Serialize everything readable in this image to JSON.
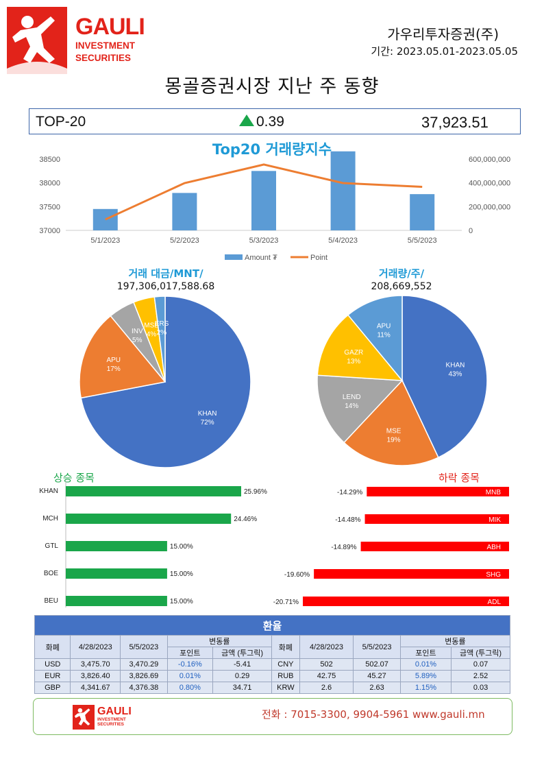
{
  "header": {
    "logo_main": "GAULI",
    "logo_sub1": "INVESTMENT",
    "logo_sub2": "SECURITIES",
    "company": "가우리투자증권(주)",
    "period": "기간: 2023.05.01-2023.05.05",
    "title": "몽골증권시장 지난 주 동향"
  },
  "top20": {
    "label": "TOP-20",
    "change": "0.39",
    "value": "37,923.51",
    "direction": "up"
  },
  "colors": {
    "brand_red": "#e2231a",
    "blue": "#4472c4",
    "orange": "#ed7d31",
    "gray": "#a5a5a5",
    "yellow": "#ffc000",
    "light_blue": "#5b9bd5",
    "green": "#1aa64a",
    "loss_red": "#ff0000"
  },
  "chart_data": [
    {
      "type": "bar",
      "title": "Top20 거래량지수",
      "categories": [
        "5/1/2023",
        "5/2/2023",
        "5/3/2023",
        "5/4/2023",
        "5/5/2023"
      ],
      "series": [
        {
          "name": "Amount ₮",
          "axis": "right",
          "values": [
            180000000,
            315000000,
            500000000,
            665000000,
            305000000
          ]
        },
        {
          "name": "Point",
          "type": "line",
          "axis": "left",
          "values": [
            37230,
            37995,
            38385,
            37995,
            37915
          ]
        }
      ],
      "left_ticks": [
        "38500",
        "38000",
        "37500",
        "37000"
      ],
      "right_ticks": [
        "600,000,000",
        "400,000,000",
        "200,000,000",
        "0"
      ],
      "ylim_left": [
        37000,
        38500
      ],
      "ylim_right": [
        0,
        600000000
      ],
      "legend": "bottom"
    },
    {
      "type": "pie",
      "title": "거래 대금/MNT/",
      "total": "197,306,017,588.68",
      "slices": [
        {
          "label": "KHAN",
          "value": 72,
          "text": "72%"
        },
        {
          "label": "APU",
          "value": 17,
          "text": "17%"
        },
        {
          "label": "INV",
          "value": 5,
          "text": "5%"
        },
        {
          "label": "MSE",
          "value": 4,
          "text": "4%"
        },
        {
          "label": "ERS",
          "value": 2,
          "text": "2%"
        }
      ]
    },
    {
      "type": "pie",
      "title": "거래량/주/",
      "total": "208,669,552",
      "slices": [
        {
          "label": "KHAN",
          "value": 43,
          "text": "43%"
        },
        {
          "label": "MSE",
          "value": 19,
          "text": "19%"
        },
        {
          "label": "LEND",
          "value": 14,
          "text": "14%"
        },
        {
          "label": "GAZR",
          "value": 13,
          "text": "13%"
        },
        {
          "label": "APU",
          "value": 11,
          "text": "11%"
        }
      ]
    },
    {
      "type": "bar",
      "title": "상승 종목",
      "categories": [
        "KHAN",
        "MCH",
        "GTL",
        "BOE",
        "BEU"
      ],
      "values": [
        25.96,
        24.46,
        15.0,
        15.0,
        15.0
      ],
      "value_labels": [
        "25.96%",
        "24.46%",
        "15.00%",
        "15.00%",
        "15.00%"
      ]
    },
    {
      "type": "bar",
      "title": "하락 종목",
      "categories": [
        "MNB",
        "MIK",
        "ABH",
        "SHG",
        "ADL"
      ],
      "values": [
        -14.29,
        -14.48,
        -14.89,
        -19.6,
        -20.71
      ],
      "value_labels": [
        "-14.29%",
        "-14.48%",
        "-14.89%",
        "-19.60%",
        "-20.71%"
      ]
    }
  ],
  "fx": {
    "title": "환율",
    "col_currency": "화폐",
    "col_date1": "4/28/2023",
    "col_date2": "5/5/2023",
    "col_change": "변동률",
    "col_point": "포인트",
    "col_amount": "금액 (투그릭)",
    "rows": [
      [
        "USD",
        "3,475.70",
        "3,470.29",
        "-0.16%",
        "-5.41",
        "CNY",
        "502",
        "502.07",
        "0.01%",
        "0.07"
      ],
      [
        "EUR",
        "3,826.40",
        "3,826.69",
        "0.01%",
        "0.29",
        "RUB",
        "42.75",
        "45.27",
        "5.89%",
        "2.52"
      ],
      [
        "GBP",
        "4,341.67",
        "4,376.38",
        "0.80%",
        "34.71",
        "KRW",
        "2.6",
        "2.63",
        "1.15%",
        "0.03"
      ]
    ]
  },
  "footer": {
    "logo_main": "GAULI",
    "logo_sub1": "INVESTMENT",
    "logo_sub2": "SECURITIES",
    "contact": "전화 : 7015-3300, 9904-5961 www.gauli.mn"
  }
}
